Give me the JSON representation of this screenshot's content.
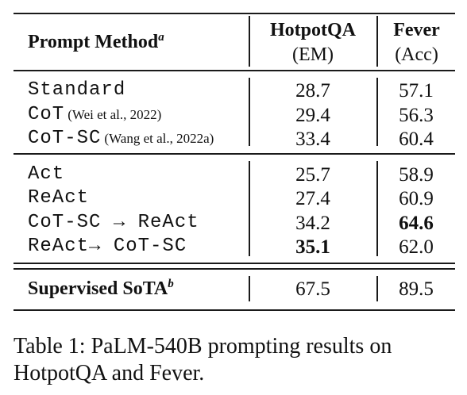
{
  "table": {
    "header": {
      "method": "Prompt Method",
      "method_sup": "a",
      "col1_name": "HotpotQA",
      "col1_metric": "(EM)",
      "col2_name": "Fever",
      "col2_metric": "(Acc)"
    },
    "rows": [
      {
        "method": "Standard",
        "cite": "",
        "hotpotqa": "28.7",
        "fever": "57.1"
      },
      {
        "method": "CoT",
        "cite": "(Wei et al., 2022)",
        "hotpotqa": "29.4",
        "fever": "56.3"
      },
      {
        "method": "CoT-SC",
        "cite": "(Wang et al., 2022a)",
        "hotpotqa": "33.4",
        "fever": "60.4"
      },
      {
        "method": "Act",
        "cite": "",
        "hotpotqa": "25.7",
        "fever": "58.9"
      },
      {
        "method": "ReAct",
        "cite": "",
        "hotpotqa": "27.4",
        "fever": "60.9"
      },
      {
        "method": "CoT-SC → ReAct",
        "cite": "",
        "hotpotqa": "34.2",
        "fever": "64.6"
      },
      {
        "method": "ReAct→ CoT-SC",
        "cite": "",
        "hotpotqa": "35.1",
        "fever": "62.0"
      }
    ],
    "sota": {
      "method": "Supervised SoTA",
      "method_sup": "b",
      "hotpotqa": "67.5",
      "fever": "89.5"
    }
  },
  "caption": "Table 1: PaLM-540B prompting results on HotpotQA and Fever."
}
